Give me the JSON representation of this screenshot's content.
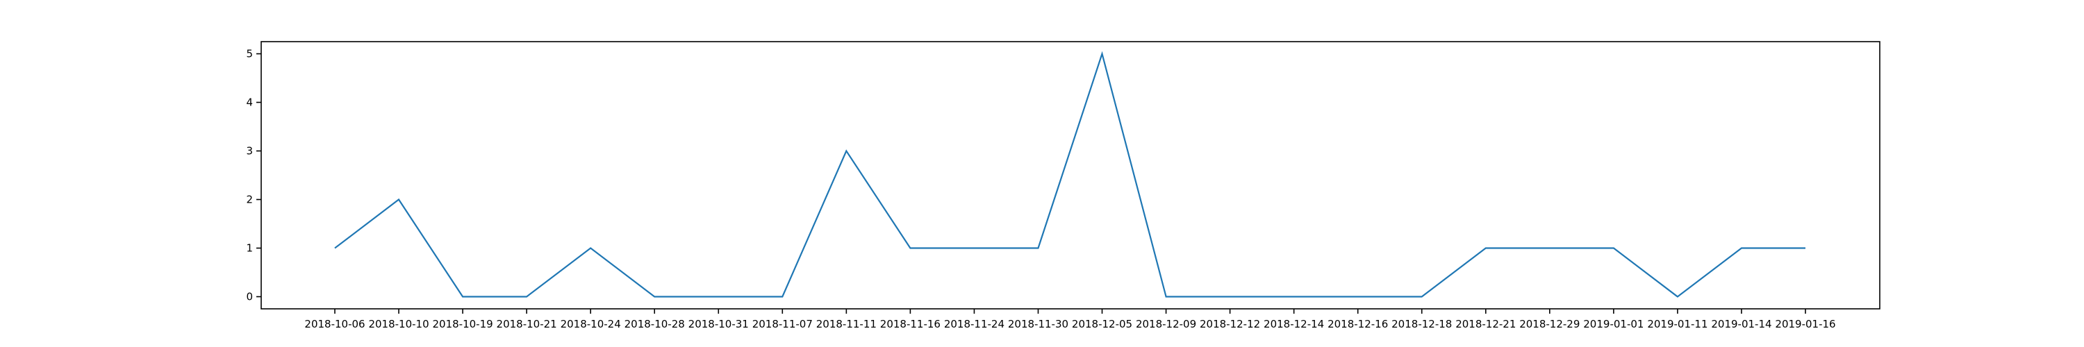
{
  "chart_data": {
    "type": "line",
    "title": "",
    "xlabel": "",
    "ylabel": "",
    "categories": [
      "2018-10-06",
      "2018-10-10",
      "2018-10-19",
      "2018-10-21",
      "2018-10-24",
      "2018-10-28",
      "2018-10-31",
      "2018-11-07",
      "2018-11-11",
      "2018-11-16",
      "2018-11-24",
      "2018-11-30",
      "2018-12-05",
      "2018-12-09",
      "2018-12-12",
      "2018-12-14",
      "2018-12-16",
      "2018-12-18",
      "2018-12-21",
      "2018-12-29",
      "2019-01-01",
      "2019-01-11",
      "2019-01-14",
      "2019-01-16"
    ],
    "series": [
      {
        "values": [
          1,
          2,
          0,
          0,
          1,
          0,
          0,
          0,
          3,
          1,
          1,
          1,
          5,
          0,
          0,
          0,
          0,
          0,
          1,
          1,
          1,
          0,
          1,
          1
        ],
        "color": "#1f77b4"
      }
    ],
    "y_ticks": [
      0,
      1,
      2,
      3,
      4,
      5
    ],
    "ylim": [
      -0.25,
      5.25
    ],
    "grid": false,
    "legend": "none"
  }
}
